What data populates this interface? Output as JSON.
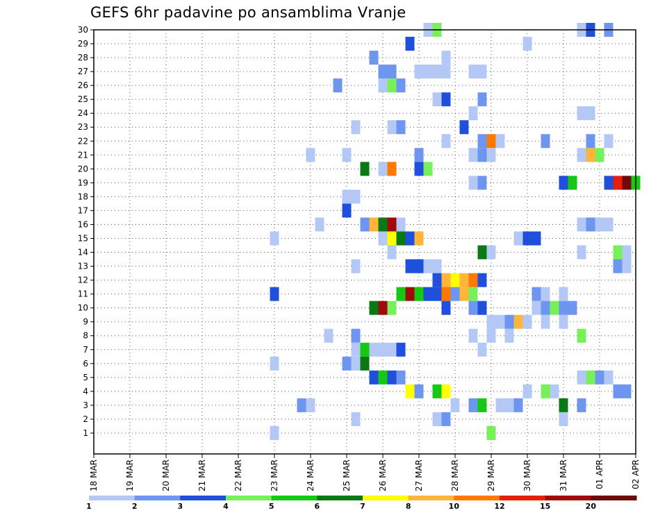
{
  "chart_data": {
    "type": "heatmap",
    "title": "GEFS 6hr padavine po ansamblima Vranje",
    "xlabel": "",
    "ylabel": "",
    "x_ticks": [
      "18 MAR",
      "19 MAR",
      "20 MAR",
      "21 MAR",
      "22 MAR",
      "23 MAR",
      "24 MAR",
      "25 MAR",
      "26 MAR",
      "27 MAR",
      "28 MAR",
      "29 MAR",
      "30 MAR",
      "31 MAR",
      "01 APR",
      "02 APR"
    ],
    "x_step": "6hr",
    "y_ticks": [
      "1",
      "2",
      "3",
      "4",
      "5",
      "6",
      "7",
      "8",
      "9",
      "10",
      "11",
      "12",
      "13",
      "14",
      "15",
      "16",
      "17",
      "18",
      "19",
      "20",
      "21",
      "22",
      "23",
      "24",
      "25",
      "26",
      "27",
      "28",
      "29",
      "30"
    ],
    "grid": true,
    "colorbar": {
      "position": "bottom",
      "labels": [
        "1",
        "2",
        "3",
        "4",
        "5",
        "6",
        "7",
        "8",
        "10",
        "12",
        "15",
        "20"
      ],
      "colors": [
        "#b4c8f5",
        "#6e96f0",
        "#1e50dc",
        "#78f05a",
        "#14c814",
        "#0a7814",
        "#ffff00",
        "#ffb43c",
        "#ff7800",
        "#e61e0a",
        "#a00a0a",
        "#6e0a0a"
      ]
    },
    "cell_color_index": {
      "0": "#b4c8f5",
      "1": "#6e96f0",
      "2": "#1e50dc",
      "3": "#78f05a",
      "4": "#14c814",
      "5": "#0a7814",
      "6": "#ffff00",
      "7": "#ffb43c",
      "8": "#ff7800",
      "9": "#e61e0a",
      "10": "#a00a0a",
      "11": "#6e0a0a"
    },
    "cells": [
      {
        "member": 30,
        "date": "27 MAR 06Z",
        "level": 0
      },
      {
        "member": 30,
        "date": "27 MAR 12Z",
        "level": 3
      },
      {
        "member": 30,
        "date": "31 MAR 12Z",
        "level": 0
      },
      {
        "member": 30,
        "date": "31 MAR 18Z",
        "level": 2
      },
      {
        "member": 30,
        "date": "01 APR 06Z",
        "level": 1
      },
      {
        "member": 29,
        "date": "26 MAR 18Z",
        "level": 2
      },
      {
        "member": 29,
        "date": "30 MAR 00Z",
        "level": 0
      },
      {
        "member": 28,
        "date": "25 MAR 18Z",
        "level": 1
      },
      {
        "member": 28,
        "date": "27 MAR 18Z",
        "level": 0
      },
      {
        "member": 27,
        "date": "26 MAR 00Z",
        "level": 1
      },
      {
        "member": 27,
        "date": "26 MAR 06Z",
        "level": 1
      },
      {
        "member": 27,
        "date": "27 MAR 00Z",
        "level": 0
      },
      {
        "member": 27,
        "date": "27 MAR 06Z",
        "level": 0
      },
      {
        "member": 27,
        "date": "27 MAR 12Z",
        "level": 0
      },
      {
        "member": 27,
        "date": "27 MAR 18Z",
        "level": 0
      },
      {
        "member": 27,
        "date": "28 MAR 12Z",
        "level": 0
      },
      {
        "member": 27,
        "date": "28 MAR 18Z",
        "level": 0
      },
      {
        "member": 26,
        "date": "24 MAR 18Z",
        "level": 1
      },
      {
        "member": 26,
        "date": "26 MAR 00Z",
        "level": 0
      },
      {
        "member": 26,
        "date": "26 MAR 06Z",
        "level": 3
      },
      {
        "member": 26,
        "date": "26 MAR 12Z",
        "level": 1
      },
      {
        "member": 25,
        "date": "27 MAR 12Z",
        "level": 0
      },
      {
        "member": 25,
        "date": "27 MAR 18Z",
        "level": 2
      },
      {
        "member": 25,
        "date": "28 MAR 18Z",
        "level": 1
      },
      {
        "member": 24,
        "date": "28 MAR 12Z",
        "level": 0
      },
      {
        "member": 24,
        "date": "31 MAR 12Z",
        "level": 0
      },
      {
        "member": 24,
        "date": "31 MAR 18Z",
        "level": 0
      },
      {
        "member": 23,
        "date": "25 MAR 06Z",
        "level": 0
      },
      {
        "member": 23,
        "date": "26 MAR 06Z",
        "level": 0
      },
      {
        "member": 23,
        "date": "26 MAR 12Z",
        "level": 1
      },
      {
        "member": 23,
        "date": "28 MAR 06Z",
        "level": 2
      },
      {
        "member": 22,
        "date": "27 MAR 18Z",
        "level": 0
      },
      {
        "member": 22,
        "date": "28 MAR 18Z",
        "level": 1
      },
      {
        "member": 22,
        "date": "29 MAR 00Z",
        "level": 8
      },
      {
        "member": 22,
        "date": "29 MAR 06Z",
        "level": 0
      },
      {
        "member": 22,
        "date": "30 MAR 12Z",
        "level": 1
      },
      {
        "member": 22,
        "date": "31 MAR 18Z",
        "level": 1
      },
      {
        "member": 22,
        "date": "01 APR 06Z",
        "level": 0
      },
      {
        "member": 21,
        "date": "24 MAR 00Z",
        "level": 0
      },
      {
        "member": 21,
        "date": "25 MAR 00Z",
        "level": 0
      },
      {
        "member": 21,
        "date": "27 MAR 00Z",
        "level": 1
      },
      {
        "member": 21,
        "date": "28 MAR 12Z",
        "level": 0
      },
      {
        "member": 21,
        "date": "28 MAR 18Z",
        "level": 1
      },
      {
        "member": 21,
        "date": "29 MAR 00Z",
        "level": 0
      },
      {
        "member": 21,
        "date": "31 MAR 12Z",
        "level": 0
      },
      {
        "member": 21,
        "date": "31 MAR 18Z",
        "level": 7
      },
      {
        "member": 21,
        "date": "01 APR 00Z",
        "level": 3
      },
      {
        "member": 20,
        "date": "25 MAR 12Z",
        "level": 5
      },
      {
        "member": 20,
        "date": "26 MAR 00Z",
        "level": 0
      },
      {
        "member": 20,
        "date": "26 MAR 06Z",
        "level": 8
      },
      {
        "member": 20,
        "date": "27 MAR 00Z",
        "level": 2
      },
      {
        "member": 20,
        "date": "27 MAR 06Z",
        "level": 3
      },
      {
        "member": 19,
        "date": "28 MAR 12Z",
        "level": 0
      },
      {
        "member": 19,
        "date": "28 MAR 18Z",
        "level": 1
      },
      {
        "member": 19,
        "date": "31 MAR 00Z",
        "level": 2
      },
      {
        "member": 19,
        "date": "31 MAR 06Z",
        "level": 4
      },
      {
        "member": 19,
        "date": "01 APR 06Z",
        "level": 2
      },
      {
        "member": 19,
        "date": "01 APR 12Z",
        "level": 9
      },
      {
        "member": 19,
        "date": "01 APR 18Z",
        "level": 11
      },
      {
        "member": 19,
        "date": "02 APR 00Z",
        "level": 4
      },
      {
        "member": 18,
        "date": "25 MAR 00Z",
        "level": 0
      },
      {
        "member": 18,
        "date": "25 MAR 06Z",
        "level": 0
      },
      {
        "member": 17,
        "date": "25 MAR 00Z",
        "level": 2
      },
      {
        "member": 16,
        "date": "24 MAR 06Z",
        "level": 0
      },
      {
        "member": 16,
        "date": "25 MAR 12Z",
        "level": 1
      },
      {
        "member": 16,
        "date": "25 MAR 18Z",
        "level": 7
      },
      {
        "member": 16,
        "date": "26 MAR 00Z",
        "level": 5
      },
      {
        "member": 16,
        "date": "26 MAR 06Z",
        "level": 10
      },
      {
        "member": 16,
        "date": "26 MAR 12Z",
        "level": 0
      },
      {
        "member": 16,
        "date": "31 MAR 12Z",
        "level": 0
      },
      {
        "member": 16,
        "date": "31 MAR 18Z",
        "level": 1
      },
      {
        "member": 16,
        "date": "01 APR 00Z",
        "level": 0
      },
      {
        "member": 16,
        "date": "01 APR 06Z",
        "level": 0
      },
      {
        "member": 15,
        "date": "23 MAR 00Z",
        "level": 0
      },
      {
        "member": 15,
        "date": "26 MAR 00Z",
        "level": 0
      },
      {
        "member": 15,
        "date": "26 MAR 06Z",
        "level": 6
      },
      {
        "member": 15,
        "date": "26 MAR 12Z",
        "level": 5
      },
      {
        "member": 15,
        "date": "26 MAR 18Z",
        "level": 2
      },
      {
        "member": 15,
        "date": "27 MAR 00Z",
        "level": 7
      },
      {
        "member": 15,
        "date": "29 MAR 18Z",
        "level": 0
      },
      {
        "member": 15,
        "date": "30 MAR 00Z",
        "level": 2
      },
      {
        "member": 15,
        "date": "30 MAR 06Z",
        "level": 2
      },
      {
        "member": 14,
        "date": "26 MAR 06Z",
        "level": 0
      },
      {
        "member": 14,
        "date": "28 MAR 18Z",
        "level": 5
      },
      {
        "member": 14,
        "date": "29 MAR 00Z",
        "level": 0
      },
      {
        "member": 14,
        "date": "31 MAR 12Z",
        "level": 0
      },
      {
        "member": 14,
        "date": "01 APR 12Z",
        "level": 3
      },
      {
        "member": 14,
        "date": "01 APR 18Z",
        "level": 0
      },
      {
        "member": 13,
        "date": "25 MAR 06Z",
        "level": 0
      },
      {
        "member": 13,
        "date": "26 MAR 18Z",
        "level": 2
      },
      {
        "member": 13,
        "date": "27 MAR 00Z",
        "level": 2
      },
      {
        "member": 13,
        "date": "27 MAR 06Z",
        "level": 0
      },
      {
        "member": 13,
        "date": "27 MAR 12Z",
        "level": 0
      },
      {
        "member": 13,
        "date": "01 APR 12Z",
        "level": 1
      },
      {
        "member": 13,
        "date": "01 APR 18Z",
        "level": 0
      },
      {
        "member": 12,
        "date": "27 MAR 12Z",
        "level": 2
      },
      {
        "member": 12,
        "date": "27 MAR 18Z",
        "level": 7
      },
      {
        "member": 12,
        "date": "28 MAR 00Z",
        "level": 6
      },
      {
        "member": 12,
        "date": "28 MAR 06Z",
        "level": 7
      },
      {
        "member": 12,
        "date": "28 MAR 12Z",
        "level": 8
      },
      {
        "member": 12,
        "date": "28 MAR 18Z",
        "level": 2
      },
      {
        "member": 11,
        "date": "23 MAR 00Z",
        "level": 2
      },
      {
        "member": 11,
        "date": "26 MAR 12Z",
        "level": 4
      },
      {
        "member": 11,
        "date": "26 MAR 18Z",
        "level": 10
      },
      {
        "member": 11,
        "date": "27 MAR 00Z",
        "level": 4
      },
      {
        "member": 11,
        "date": "27 MAR 06Z",
        "level": 2
      },
      {
        "member": 11,
        "date": "27 MAR 12Z",
        "level": 2
      },
      {
        "member": 11,
        "date": "27 MAR 18Z",
        "level": 8
      },
      {
        "member": 11,
        "date": "28 MAR 00Z",
        "level": 1
      },
      {
        "member": 11,
        "date": "28 MAR 06Z",
        "level": 7
      },
      {
        "member": 11,
        "date": "28 MAR 12Z",
        "level": 3
      },
      {
        "member": 11,
        "date": "30 MAR 06Z",
        "level": 1
      },
      {
        "member": 11,
        "date": "30 MAR 12Z",
        "level": 0
      },
      {
        "member": 11,
        "date": "31 MAR 00Z",
        "level": 0
      },
      {
        "member": 10,
        "date": "25 MAR 18Z",
        "level": 5
      },
      {
        "member": 10,
        "date": "26 MAR 00Z",
        "level": 10
      },
      {
        "member": 10,
        "date": "26 MAR 06Z",
        "level": 3
      },
      {
        "member": 10,
        "date": "27 MAR 18Z",
        "level": 2
      },
      {
        "member": 10,
        "date": "28 MAR 12Z",
        "level": 1
      },
      {
        "member": 10,
        "date": "28 MAR 18Z",
        "level": 2
      },
      {
        "member": 10,
        "date": "30 MAR 06Z",
        "level": 0
      },
      {
        "member": 10,
        "date": "30 MAR 12Z",
        "level": 1
      },
      {
        "member": 10,
        "date": "30 MAR 18Z",
        "level": 3
      },
      {
        "member": 10,
        "date": "31 MAR 00Z",
        "level": 1
      },
      {
        "member": 10,
        "date": "31 MAR 06Z",
        "level": 1
      },
      {
        "member": 9,
        "date": "29 MAR 00Z",
        "level": 0
      },
      {
        "member": 9,
        "date": "29 MAR 06Z",
        "level": 0
      },
      {
        "member": 9,
        "date": "29 MAR 12Z",
        "level": 1
      },
      {
        "member": 9,
        "date": "29 MAR 18Z",
        "level": 7
      },
      {
        "member": 9,
        "date": "30 MAR 00Z",
        "level": 0
      },
      {
        "member": 9,
        "date": "30 MAR 12Z",
        "level": 0
      },
      {
        "member": 9,
        "date": "31 MAR 00Z",
        "level": 0
      },
      {
        "member": 8,
        "date": "24 MAR 12Z",
        "level": 0
      },
      {
        "member": 8,
        "date": "25 MAR 06Z",
        "level": 1
      },
      {
        "member": 8,
        "date": "28 MAR 12Z",
        "level": 0
      },
      {
        "member": 8,
        "date": "29 MAR 00Z",
        "level": 0
      },
      {
        "member": 8,
        "date": "29 MAR 12Z",
        "level": 0
      },
      {
        "member": 8,
        "date": "31 MAR 12Z",
        "level": 3
      },
      {
        "member": 7,
        "date": "25 MAR 06Z",
        "level": 0
      },
      {
        "member": 7,
        "date": "25 MAR 12Z",
        "level": 4
      },
      {
        "member": 7,
        "date": "25 MAR 18Z",
        "level": 0
      },
      {
        "member": 7,
        "date": "26 MAR 00Z",
        "level": 0
      },
      {
        "member": 7,
        "date": "26 MAR 06Z",
        "level": 0
      },
      {
        "member": 7,
        "date": "26 MAR 12Z",
        "level": 2
      },
      {
        "member": 7,
        "date": "28 MAR 18Z",
        "level": 0
      },
      {
        "member": 6,
        "date": "23 MAR 00Z",
        "level": 0
      },
      {
        "member": 6,
        "date": "25 MAR 00Z",
        "level": 1
      },
      {
        "member": 6,
        "date": "25 MAR 06Z",
        "level": 0
      },
      {
        "member": 6,
        "date": "25 MAR 12Z",
        "level": 5
      },
      {
        "member": 5,
        "date": "25 MAR 18Z",
        "level": 2
      },
      {
        "member": 5,
        "date": "26 MAR 00Z",
        "level": 4
      },
      {
        "member": 5,
        "date": "26 MAR 06Z",
        "level": 2
      },
      {
        "member": 5,
        "date": "26 MAR 12Z",
        "level": 1
      },
      {
        "member": 5,
        "date": "31 MAR 12Z",
        "level": 0
      },
      {
        "member": 5,
        "date": "31 MAR 18Z",
        "level": 3
      },
      {
        "member": 5,
        "date": "01 APR 00Z",
        "level": 1
      },
      {
        "member": 5,
        "date": "01 APR 06Z",
        "level": 0
      },
      {
        "member": 4,
        "date": "26 MAR 18Z",
        "level": 6
      },
      {
        "member": 4,
        "date": "27 MAR 00Z",
        "level": 1
      },
      {
        "member": 4,
        "date": "27 MAR 12Z",
        "level": 4
      },
      {
        "member": 4,
        "date": "27 MAR 18Z",
        "level": 6
      },
      {
        "member": 4,
        "date": "30 MAR 00Z",
        "level": 0
      },
      {
        "member": 4,
        "date": "30 MAR 12Z",
        "level": 3
      },
      {
        "member": 4,
        "date": "30 MAR 18Z",
        "level": 0
      },
      {
        "member": 4,
        "date": "01 APR 12Z",
        "level": 1
      },
      {
        "member": 4,
        "date": "01 APR 18Z",
        "level": 1
      },
      {
        "member": 3,
        "date": "23 MAR 18Z",
        "level": 1
      },
      {
        "member": 3,
        "date": "24 MAR 00Z",
        "level": 0
      },
      {
        "member": 3,
        "date": "28 MAR 00Z",
        "level": 0
      },
      {
        "member": 3,
        "date": "28 MAR 12Z",
        "level": 1
      },
      {
        "member": 3,
        "date": "28 MAR 18Z",
        "level": 4
      },
      {
        "member": 3,
        "date": "29 MAR 06Z",
        "level": 0
      },
      {
        "member": 3,
        "date": "29 MAR 12Z",
        "level": 0
      },
      {
        "member": 3,
        "date": "29 MAR 18Z",
        "level": 1
      },
      {
        "member": 3,
        "date": "31 MAR 00Z",
        "level": 5
      },
      {
        "member": 3,
        "date": "31 MAR 12Z",
        "level": 1
      },
      {
        "member": 2,
        "date": "25 MAR 06Z",
        "level": 0
      },
      {
        "member": 2,
        "date": "27 MAR 12Z",
        "level": 0
      },
      {
        "member": 2,
        "date": "27 MAR 18Z",
        "level": 1
      },
      {
        "member": 2,
        "date": "31 MAR 00Z",
        "level": 0
      },
      {
        "member": 1,
        "date": "23 MAR 00Z",
        "level": 0
      },
      {
        "member": 1,
        "date": "29 MAR 00Z",
        "level": 3
      }
    ]
  }
}
